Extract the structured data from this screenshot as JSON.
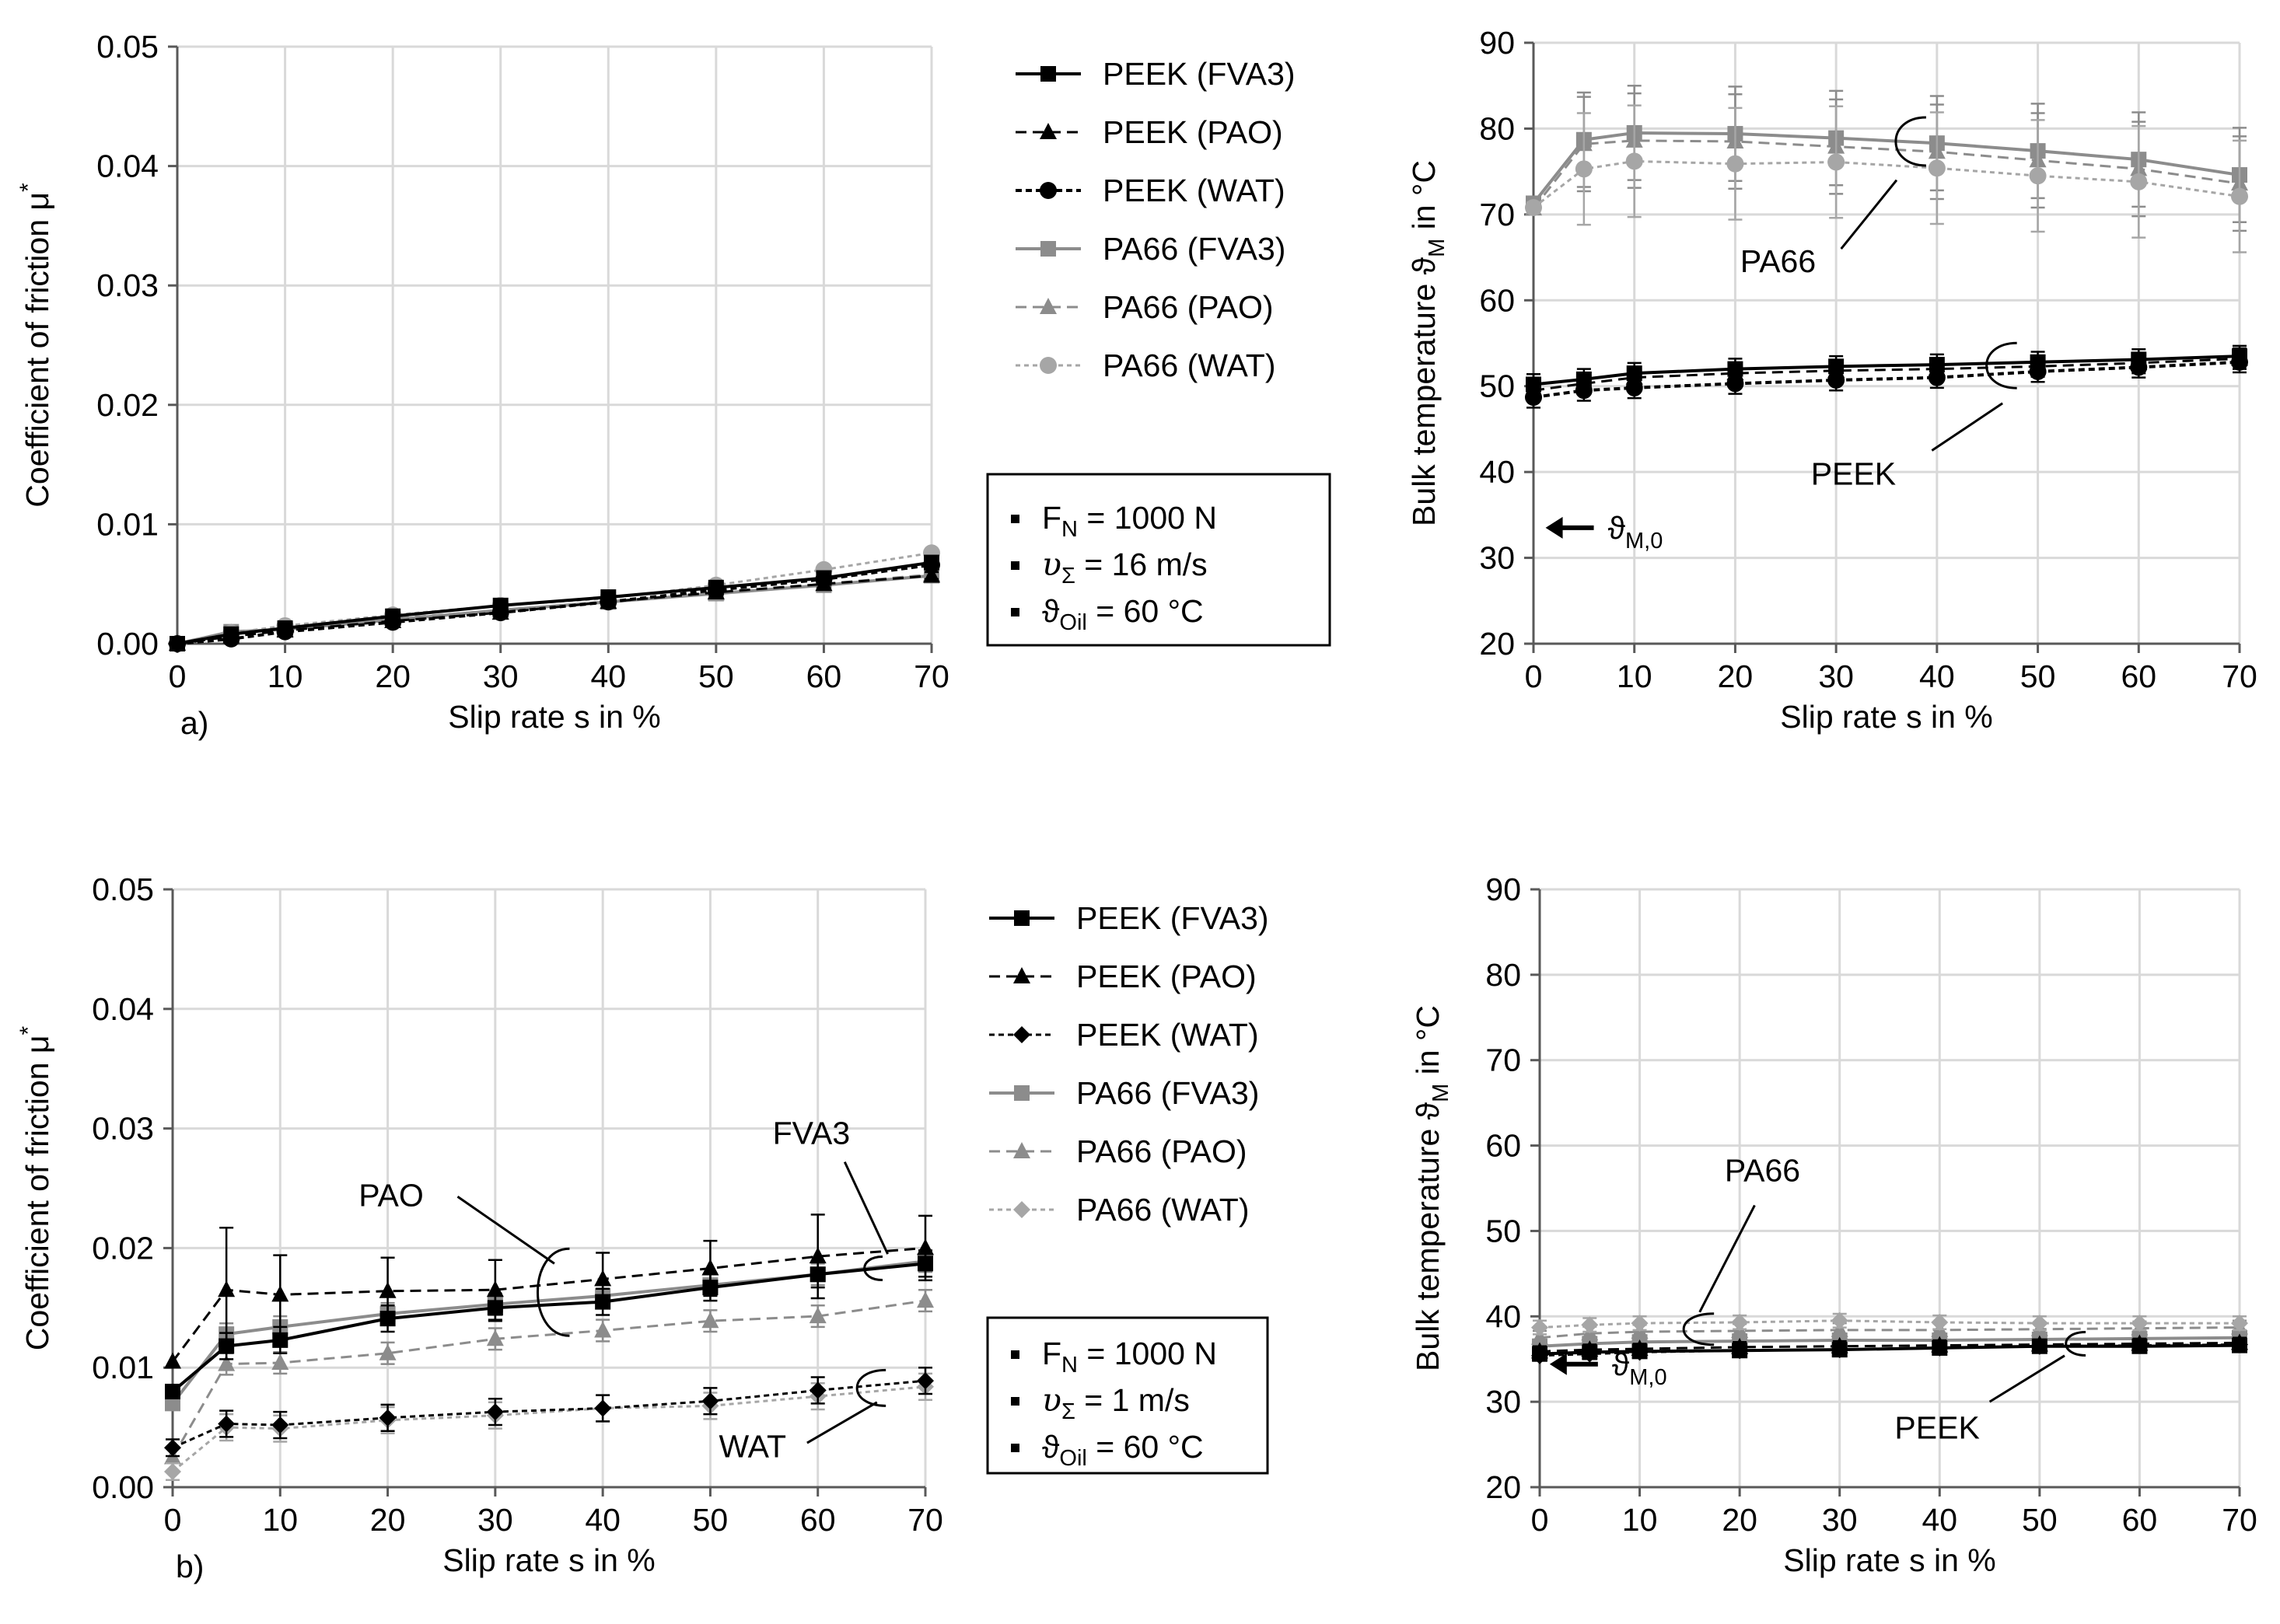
{
  "chart_data": [
    {
      "id": "a-friction",
      "type": "line",
      "panel_label": "a)",
      "xlabel": "Slip rate s in %",
      "ylabel_main": "Coefficient of friction μ",
      "ylabel_sup": "*",
      "xlim": [
        0,
        70
      ],
      "ylim": [
        0,
        0.05
      ],
      "xticks": [
        0,
        10,
        20,
        30,
        40,
        50,
        60,
        70
      ],
      "yticks": [
        0,
        0.01,
        0.02,
        0.03,
        0.04,
        0.05
      ],
      "ytick_labels": [
        "0.00",
        "0.01",
        "0.02",
        "0.03",
        "0.04",
        "0.05"
      ],
      "grid": true,
      "x": [
        0,
        5,
        10,
        20,
        30,
        40,
        50,
        60,
        70
      ],
      "series": [
        {
          "name": "PEEK (FVA3)",
          "style": "peek_fva3",
          "values": [
            0,
            0.0008,
            0.0013,
            0.0023,
            0.0032,
            0.0039,
            0.0047,
            0.0055,
            0.0068
          ]
        },
        {
          "name": "PEEK (PAO)",
          "style": "peek_pao",
          "values": [
            0,
            0.0006,
            0.0011,
            0.0019,
            0.0026,
            0.0035,
            0.0043,
            0.005,
            0.0057
          ]
        },
        {
          "name": "PEEK (WAT)",
          "style": "peek_wat",
          "values": [
            0,
            0.0004,
            0.001,
            0.0018,
            0.0026,
            0.0035,
            0.0045,
            0.0054,
            0.0066
          ]
        },
        {
          "name": "PA66 (FVA3)",
          "style": "pa_fva3",
          "values": [
            0,
            0.001,
            0.0012,
            0.002,
            0.0028,
            0.0035,
            0.0042,
            0.0049,
            0.0057
          ]
        },
        {
          "name": "PA66 (PAO)",
          "style": "pa_pao",
          "values": [
            0,
            0.0009,
            0.0012,
            0.0021,
            0.0028,
            0.0035,
            0.0042,
            0.005,
            0.0058
          ]
        },
        {
          "name": "PA66 (WAT)",
          "style": "pa_wat",
          "values": [
            0,
            0.0009,
            0.0015,
            0.0024,
            0.0032,
            0.0038,
            0.0049,
            0.0062,
            0.0076
          ]
        }
      ],
      "conditions": [
        "F",
        "N",
        " = 1000 N",
        "16 m/s",
        "60 °C"
      ]
    },
    {
      "id": "a-temperature",
      "type": "line",
      "xlabel": "Slip rate s in %",
      "ylabel_main": "Bulk temperature ϑ",
      "ylabel_sub": "M",
      "ylabel_tail": " in °C",
      "xlim": [
        0,
        70
      ],
      "ylim": [
        20,
        90
      ],
      "xticks": [
        0,
        10,
        20,
        30,
        40,
        50,
        60,
        70
      ],
      "yticks": [
        20,
        30,
        40,
        50,
        60,
        70,
        80,
        90
      ],
      "grid": true,
      "x": [
        0,
        5,
        10,
        20,
        30,
        40,
        50,
        60,
        70
      ],
      "series": [
        {
          "name": "PEEK (FVA3)",
          "style": "peek_fva3",
          "values": [
            50.2,
            50.8,
            51.5,
            52.0,
            52.3,
            52.5,
            52.8,
            53.1,
            53.5
          ]
        },
        {
          "name": "PEEK (PAO)",
          "style": "peek_pao",
          "values": [
            49.5,
            50.3,
            51.0,
            51.5,
            51.8,
            52.0,
            52.3,
            52.7,
            53.2
          ]
        },
        {
          "name": "PEEK (WAT)",
          "style": "peek_wat",
          "values": [
            48.7,
            49.5,
            49.8,
            50.3,
            50.7,
            51.0,
            51.7,
            52.2,
            52.8
          ]
        },
        {
          "name": "PA66 (FVA3)",
          "style": "pa_fva3",
          "values": [
            71.3,
            78.7,
            79.5,
            79.4,
            78.9,
            78.3,
            77.4,
            76.4,
            74.6
          ]
        },
        {
          "name": "PA66 (PAO)",
          "style": "pa_pao",
          "values": [
            70.7,
            78.2,
            78.6,
            78.5,
            77.9,
            77.3,
            76.3,
            75.3,
            73.6
          ]
        },
        {
          "name": "PA66 (WAT)",
          "style": "pa_wat",
          "values": [
            70.8,
            75.3,
            76.2,
            75.9,
            76.1,
            75.4,
            74.5,
            73.8,
            72.1
          ]
        }
      ],
      "annotations": [
        "PA66",
        "PEEK",
        "ϑ",
        "M,0"
      ]
    },
    {
      "id": "b-friction",
      "type": "line",
      "panel_label": "b)",
      "xlabel": "Slip rate s in %",
      "ylabel_main": "Coefficient of friction μ",
      "ylabel_sup": "*",
      "xlim": [
        0,
        70
      ],
      "ylim": [
        0,
        0.05
      ],
      "xticks": [
        0,
        10,
        20,
        30,
        40,
        50,
        60,
        70
      ],
      "yticks": [
        0,
        0.01,
        0.02,
        0.03,
        0.04,
        0.05
      ],
      "ytick_labels": [
        "0.00",
        "0.01",
        "0.02",
        "0.03",
        "0.04",
        "0.05"
      ],
      "grid": true,
      "x": [
        0,
        5,
        10,
        20,
        30,
        40,
        50,
        60,
        70
      ],
      "series": [
        {
          "name": "PEEK (FVA3)",
          "style": "peek_fva3",
          "values": [
            0.008,
            0.0118,
            0.0123,
            0.0141,
            0.015,
            0.0155,
            0.0167,
            0.0178,
            0.0187
          ]
        },
        {
          "name": "PEEK (PAO)",
          "style": "peek_pao",
          "values": [
            0.0105,
            0.0165,
            0.0161,
            0.0164,
            0.0165,
            0.0174,
            0.0183,
            0.0193,
            0.02
          ]
        },
        {
          "name": "PEEK (WAT)",
          "style": "peek_wat",
          "values": [
            0.0033,
            0.0053,
            0.0052,
            0.0058,
            0.0063,
            0.0066,
            0.0072,
            0.0081,
            0.0089
          ]
        },
        {
          "name": "PA66 (FVA3)",
          "style": "pa_fva3",
          "values": [
            0.007,
            0.0128,
            0.0134,
            0.0145,
            0.0153,
            0.016,
            0.0169,
            0.0178,
            0.0189
          ]
        },
        {
          "name": "PA66 (PAO)",
          "style": "pa_pao",
          "values": [
            0.0025,
            0.0103,
            0.0104,
            0.0112,
            0.0124,
            0.0131,
            0.0139,
            0.0143,
            0.0156
          ]
        },
        {
          "name": "PA66 (WAT)",
          "style": "pa_wat",
          "values": [
            0.0013,
            0.005,
            0.0049,
            0.0056,
            0.006,
            0.0066,
            0.0068,
            0.0076,
            0.0084
          ]
        }
      ],
      "conditions": [
        "F",
        "N",
        " = 1000 N",
        "1 m/s",
        "60 °C"
      ],
      "annotations": [
        "PAO",
        "FVA3",
        "WAT"
      ]
    },
    {
      "id": "b-temperature",
      "type": "line",
      "xlabel": "Slip rate s in %",
      "ylabel_main": "Bulk temperature ϑ",
      "ylabel_sub": "M",
      "ylabel_tail": " in °C",
      "xlim": [
        0,
        70
      ],
      "ylim": [
        20,
        90
      ],
      "xticks": [
        0,
        10,
        20,
        30,
        40,
        50,
        60,
        70
      ],
      "yticks": [
        20,
        30,
        40,
        50,
        60,
        70,
        80,
        90
      ],
      "grid": true,
      "x": [
        0,
        5,
        10,
        20,
        30,
        40,
        50,
        60,
        70
      ],
      "series": [
        {
          "name": "PEEK (FVA3)",
          "style": "peek_fva3",
          "values": [
            35.6,
            35.8,
            35.9,
            36.0,
            36.1,
            36.3,
            36.5,
            36.5,
            36.6
          ]
        },
        {
          "name": "PEEK (PAO)",
          "style": "peek_pao",
          "values": [
            35.9,
            36.1,
            36.2,
            36.4,
            36.5,
            36.6,
            36.7,
            36.8,
            36.9
          ]
        },
        {
          "name": "PEEK (WAT)",
          "style": "peek_wat",
          "values": [
            35.4,
            35.6,
            35.8,
            36.0,
            36.1,
            36.3,
            36.5,
            36.6,
            36.7
          ]
        },
        {
          "name": "PA66 (FVA3)",
          "style": "pa_fva3",
          "values": [
            36.5,
            36.8,
            37.0,
            37.1,
            37.2,
            37.2,
            37.3,
            37.4,
            37.5
          ]
        },
        {
          "name": "PA66 (PAO)",
          "style": "pa_pao",
          "values": [
            37.5,
            38.0,
            38.2,
            38.3,
            38.4,
            38.4,
            38.5,
            38.6,
            38.7
          ]
        },
        {
          "name": "PA66 (WAT)",
          "style": "pa_wat",
          "values": [
            38.7,
            39.0,
            39.2,
            39.3,
            39.5,
            39.3,
            39.2,
            39.2,
            39.2
          ]
        }
      ],
      "annotations": [
        "PA66",
        "PEEK",
        "ϑ",
        "M,0"
      ]
    }
  ],
  "legend_top": [
    "PEEK (FVA3)",
    "PEEK (PAO)",
    "PEEK (WAT)",
    "PA66 (FVA3)",
    "PA66 (PAO)",
    "PA66 (WAT)"
  ],
  "legend_bottom": [
    "PEEK (FVA3)",
    "PEEK (PAO)",
    "PEEK (WAT)",
    "PA66 (FVA3)",
    "PA66 (PAO)",
    "PA66 (WAT)"
  ],
  "condition_symbols": {
    "velocity": "υ",
    "sum": "Σ",
    "theta": "ϑ",
    "oil_sub": "Oil",
    "velocity_eq": " = ",
    "theta_eq": " = "
  },
  "colors": {
    "black": "#000000",
    "gray": "#8c8c8c",
    "gray_light": "#a6a6a6",
    "grid": "#d9d9d9",
    "axis": "#595959"
  }
}
